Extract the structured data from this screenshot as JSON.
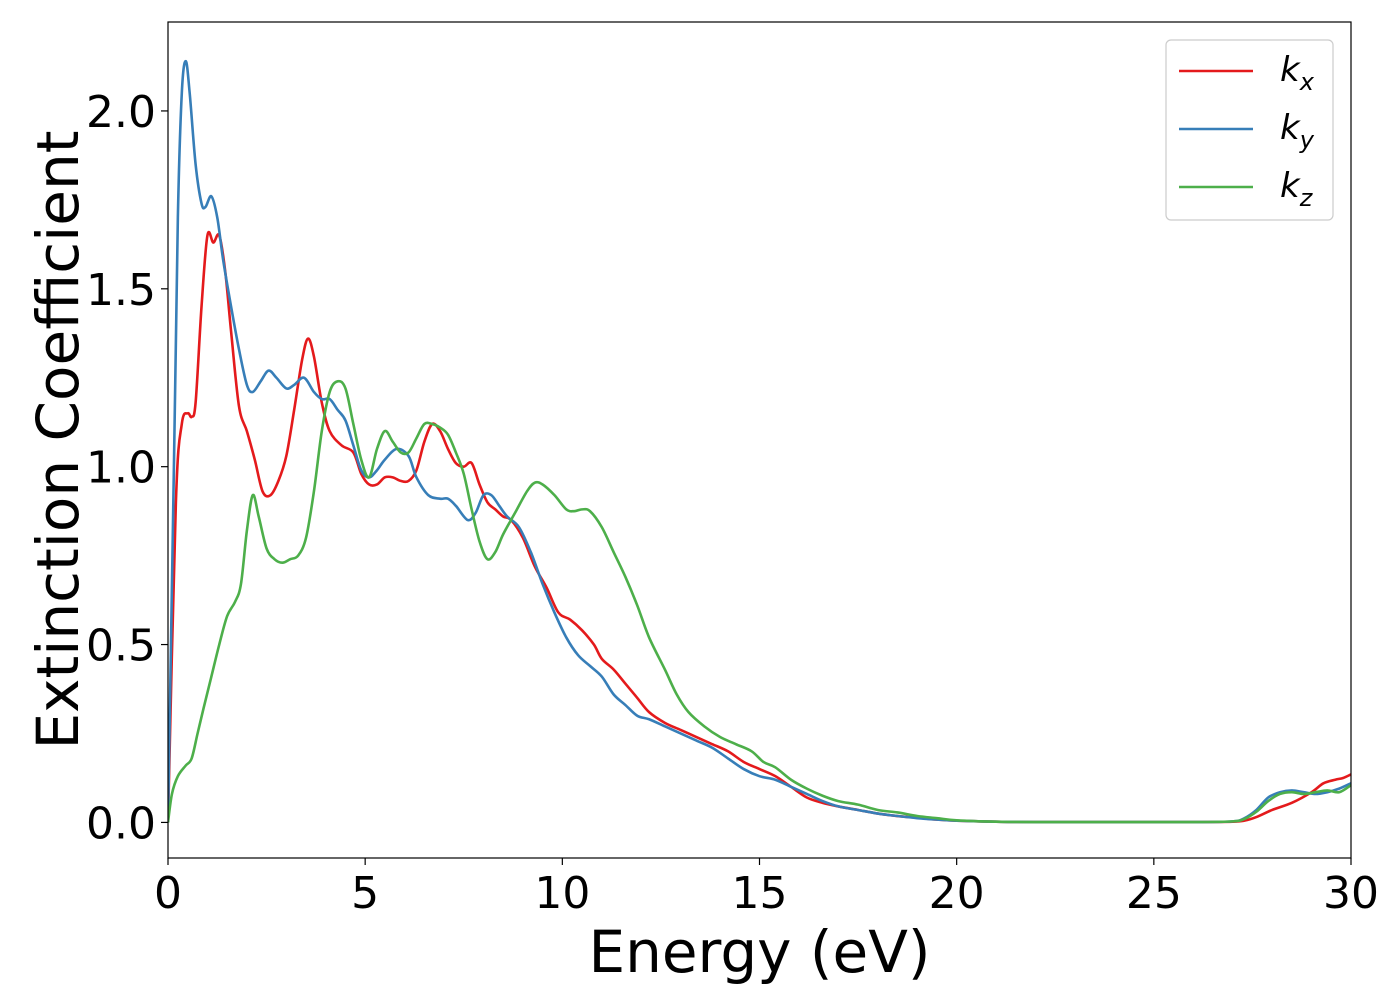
{
  "chart_data": {
    "type": "line",
    "title": "",
    "xlabel": "Energy (eV)",
    "ylabel": "Extinction Coefficient",
    "xlim": [
      0,
      30
    ],
    "ylim": [
      -0.1,
      2.25
    ],
    "xticks": [
      0,
      5,
      10,
      15,
      20,
      25,
      30
    ],
    "xtick_labels": [
      "0",
      "5",
      "10",
      "15",
      "20",
      "25",
      "30"
    ],
    "yticks": [
      0.0,
      0.5,
      1.0,
      1.5,
      2.0
    ],
    "ytick_labels": [
      "0.0",
      "0.5",
      "1.0",
      "1.5",
      "2.0"
    ],
    "grid": false,
    "legend_position": "top-right",
    "series": [
      {
        "name": "k",
        "subscript": "x",
        "color": "#e41a1c",
        "points": [
          [
            0,
            0
          ],
          [
            0.2,
            0.9
          ],
          [
            0.35,
            1.12
          ],
          [
            0.5,
            1.15
          ],
          [
            0.6,
            1.14
          ],
          [
            0.7,
            1.18
          ],
          [
            0.85,
            1.45
          ],
          [
            1.0,
            1.65
          ],
          [
            1.15,
            1.63
          ],
          [
            1.3,
            1.65
          ],
          [
            1.45,
            1.55
          ],
          [
            1.6,
            1.38
          ],
          [
            1.8,
            1.17
          ],
          [
            2.0,
            1.1
          ],
          [
            2.2,
            1.02
          ],
          [
            2.4,
            0.93
          ],
          [
            2.6,
            0.92
          ],
          [
            2.8,
            0.96
          ],
          [
            3.0,
            1.03
          ],
          [
            3.2,
            1.16
          ],
          [
            3.4,
            1.3
          ],
          [
            3.55,
            1.36
          ],
          [
            3.7,
            1.31
          ],
          [
            3.9,
            1.18
          ],
          [
            4.1,
            1.1
          ],
          [
            4.4,
            1.06
          ],
          [
            4.7,
            1.04
          ],
          [
            4.9,
            0.98
          ],
          [
            5.1,
            0.95
          ],
          [
            5.3,
            0.95
          ],
          [
            5.5,
            0.97
          ],
          [
            5.7,
            0.97
          ],
          [
            5.9,
            0.96
          ],
          [
            6.1,
            0.96
          ],
          [
            6.3,
            0.99
          ],
          [
            6.5,
            1.07
          ],
          [
            6.7,
            1.12
          ],
          [
            6.9,
            1.1
          ],
          [
            7.1,
            1.05
          ],
          [
            7.3,
            1.01
          ],
          [
            7.5,
            1.0
          ],
          [
            7.7,
            1.01
          ],
          [
            7.9,
            0.95
          ],
          [
            8.1,
            0.9
          ],
          [
            8.3,
            0.88
          ],
          [
            8.5,
            0.86
          ],
          [
            8.7,
            0.85
          ],
          [
            9.0,
            0.8
          ],
          [
            9.3,
            0.72
          ],
          [
            9.6,
            0.66
          ],
          [
            9.9,
            0.59
          ],
          [
            10.2,
            0.57
          ],
          [
            10.5,
            0.54
          ],
          [
            10.8,
            0.5
          ],
          [
            11.0,
            0.46
          ],
          [
            11.3,
            0.43
          ],
          [
            11.6,
            0.39
          ],
          [
            11.9,
            0.35
          ],
          [
            12.2,
            0.31
          ],
          [
            12.6,
            0.28
          ],
          [
            13.0,
            0.26
          ],
          [
            13.4,
            0.24
          ],
          [
            13.8,
            0.22
          ],
          [
            14.2,
            0.2
          ],
          [
            14.6,
            0.17
          ],
          [
            15.0,
            0.15
          ],
          [
            15.4,
            0.13
          ],
          [
            15.8,
            0.1
          ],
          [
            16.2,
            0.07
          ],
          [
            16.6,
            0.055
          ],
          [
            17.0,
            0.045
          ],
          [
            17.5,
            0.035
          ],
          [
            18.0,
            0.025
          ],
          [
            18.5,
            0.018
          ],
          [
            19.0,
            0.013
          ],
          [
            19.5,
            0.008
          ],
          [
            20.0,
            0.005
          ],
          [
            21,
            0.002
          ],
          [
            22,
            0.001
          ],
          [
            24,
            0.001
          ],
          [
            26,
            0.001
          ],
          [
            27.0,
            0.002
          ],
          [
            27.3,
            0.005
          ],
          [
            27.6,
            0.015
          ],
          [
            28.0,
            0.035
          ],
          [
            28.5,
            0.055
          ],
          [
            29.0,
            0.085
          ],
          [
            29.3,
            0.11
          ],
          [
            29.6,
            0.12
          ],
          [
            29.8,
            0.125
          ],
          [
            30.0,
            0.135
          ]
        ]
      },
      {
        "name": "k",
        "subscript": "y",
        "color": "#377eb8",
        "points": [
          [
            0,
            0
          ],
          [
            0.15,
            1.0
          ],
          [
            0.25,
            1.7
          ],
          [
            0.35,
            2.05
          ],
          [
            0.45,
            2.14
          ],
          [
            0.55,
            2.05
          ],
          [
            0.7,
            1.85
          ],
          [
            0.85,
            1.74
          ],
          [
            0.95,
            1.73
          ],
          [
            1.1,
            1.76
          ],
          [
            1.25,
            1.7
          ],
          [
            1.4,
            1.58
          ],
          [
            1.6,
            1.45
          ],
          [
            1.8,
            1.33
          ],
          [
            2.0,
            1.23
          ],
          [
            2.15,
            1.21
          ],
          [
            2.35,
            1.24
          ],
          [
            2.55,
            1.27
          ],
          [
            2.75,
            1.25
          ],
          [
            3.0,
            1.22
          ],
          [
            3.2,
            1.23
          ],
          [
            3.45,
            1.25
          ],
          [
            3.7,
            1.21
          ],
          [
            3.9,
            1.19
          ],
          [
            4.1,
            1.19
          ],
          [
            4.3,
            1.16
          ],
          [
            4.5,
            1.13
          ],
          [
            4.7,
            1.06
          ],
          [
            4.9,
            0.99
          ],
          [
            5.1,
            0.97
          ],
          [
            5.3,
            0.99
          ],
          [
            5.5,
            1.02
          ],
          [
            5.8,
            1.05
          ],
          [
            6.1,
            1.03
          ],
          [
            6.3,
            0.97
          ],
          [
            6.6,
            0.92
          ],
          [
            6.9,
            0.91
          ],
          [
            7.1,
            0.91
          ],
          [
            7.3,
            0.89
          ],
          [
            7.6,
            0.85
          ],
          [
            7.8,
            0.87
          ],
          [
            8.0,
            0.92
          ],
          [
            8.2,
            0.92
          ],
          [
            8.4,
            0.89
          ],
          [
            8.6,
            0.86
          ],
          [
            8.9,
            0.83
          ],
          [
            9.2,
            0.76
          ],
          [
            9.5,
            0.67
          ],
          [
            9.8,
            0.59
          ],
          [
            10.1,
            0.52
          ],
          [
            10.4,
            0.47
          ],
          [
            10.7,
            0.44
          ],
          [
            11.0,
            0.41
          ],
          [
            11.3,
            0.36
          ],
          [
            11.6,
            0.33
          ],
          [
            11.9,
            0.3
          ],
          [
            12.2,
            0.29
          ],
          [
            12.6,
            0.27
          ],
          [
            13.0,
            0.25
          ],
          [
            13.4,
            0.23
          ],
          [
            13.8,
            0.21
          ],
          [
            14.2,
            0.18
          ],
          [
            14.6,
            0.15
          ],
          [
            15.0,
            0.13
          ],
          [
            15.4,
            0.12
          ],
          [
            15.8,
            0.1
          ],
          [
            16.2,
            0.08
          ],
          [
            16.6,
            0.06
          ],
          [
            17.0,
            0.045
          ],
          [
            17.5,
            0.035
          ],
          [
            18.0,
            0.025
          ],
          [
            18.5,
            0.018
          ],
          [
            19.0,
            0.012
          ],
          [
            19.5,
            0.008
          ],
          [
            20.0,
            0.005
          ],
          [
            21,
            0.002
          ],
          [
            22,
            0.001
          ],
          [
            24,
            0.001
          ],
          [
            26,
            0.001
          ],
          [
            27.0,
            0.003
          ],
          [
            27.3,
            0.012
          ],
          [
            27.6,
            0.035
          ],
          [
            27.9,
            0.07
          ],
          [
            28.2,
            0.085
          ],
          [
            28.5,
            0.09
          ],
          [
            28.8,
            0.085
          ],
          [
            29.1,
            0.08
          ],
          [
            29.4,
            0.085
          ],
          [
            29.7,
            0.095
          ],
          [
            30.0,
            0.11
          ]
        ]
      },
      {
        "name": "k",
        "subscript": "z",
        "color": "#4daf4a",
        "points": [
          [
            0,
            0
          ],
          [
            0.1,
            0.08
          ],
          [
            0.25,
            0.13
          ],
          [
            0.45,
            0.16
          ],
          [
            0.6,
            0.18
          ],
          [
            0.75,
            0.25
          ],
          [
            0.9,
            0.32
          ],
          [
            1.1,
            0.41
          ],
          [
            1.3,
            0.5
          ],
          [
            1.5,
            0.58
          ],
          [
            1.7,
            0.62
          ],
          [
            1.85,
            0.67
          ],
          [
            2.0,
            0.82
          ],
          [
            2.15,
            0.92
          ],
          [
            2.3,
            0.86
          ],
          [
            2.5,
            0.77
          ],
          [
            2.7,
            0.74
          ],
          [
            2.9,
            0.73
          ],
          [
            3.1,
            0.74
          ],
          [
            3.3,
            0.75
          ],
          [
            3.5,
            0.8
          ],
          [
            3.7,
            0.93
          ],
          [
            3.9,
            1.1
          ],
          [
            4.1,
            1.21
          ],
          [
            4.3,
            1.24
          ],
          [
            4.5,
            1.22
          ],
          [
            4.7,
            1.12
          ],
          [
            4.9,
            1.02
          ],
          [
            5.1,
            0.97
          ],
          [
            5.3,
            1.05
          ],
          [
            5.5,
            1.1
          ],
          [
            5.7,
            1.07
          ],
          [
            5.9,
            1.04
          ],
          [
            6.1,
            1.04
          ],
          [
            6.3,
            1.08
          ],
          [
            6.5,
            1.12
          ],
          [
            6.7,
            1.12
          ],
          [
            6.9,
            1.11
          ],
          [
            7.1,
            1.09
          ],
          [
            7.3,
            1.04
          ],
          [
            7.5,
            0.98
          ],
          [
            7.7,
            0.88
          ],
          [
            7.9,
            0.79
          ],
          [
            8.1,
            0.74
          ],
          [
            8.3,
            0.76
          ],
          [
            8.5,
            0.81
          ],
          [
            8.8,
            0.87
          ],
          [
            9.1,
            0.93
          ],
          [
            9.3,
            0.955
          ],
          [
            9.5,
            0.95
          ],
          [
            9.8,
            0.92
          ],
          [
            10.1,
            0.88
          ],
          [
            10.3,
            0.875
          ],
          [
            10.5,
            0.88
          ],
          [
            10.7,
            0.875
          ],
          [
            11.0,
            0.83
          ],
          [
            11.3,
            0.76
          ],
          [
            11.6,
            0.69
          ],
          [
            11.9,
            0.61
          ],
          [
            12.2,
            0.52
          ],
          [
            12.6,
            0.43
          ],
          [
            12.9,
            0.36
          ],
          [
            13.2,
            0.31
          ],
          [
            13.6,
            0.27
          ],
          [
            14.0,
            0.24
          ],
          [
            14.4,
            0.22
          ],
          [
            14.8,
            0.2
          ],
          [
            15.1,
            0.17
          ],
          [
            15.4,
            0.155
          ],
          [
            15.8,
            0.12
          ],
          [
            16.2,
            0.095
          ],
          [
            16.6,
            0.075
          ],
          [
            17.0,
            0.06
          ],
          [
            17.5,
            0.05
          ],
          [
            18.0,
            0.035
          ],
          [
            18.5,
            0.028
          ],
          [
            19.0,
            0.018
          ],
          [
            19.5,
            0.012
          ],
          [
            20.0,
            0.006
          ],
          [
            21,
            0.002
          ],
          [
            22,
            0.001
          ],
          [
            24,
            0.001
          ],
          [
            26,
            0.001
          ],
          [
            27.0,
            0.003
          ],
          [
            27.3,
            0.01
          ],
          [
            27.6,
            0.03
          ],
          [
            27.9,
            0.06
          ],
          [
            28.2,
            0.08
          ],
          [
            28.5,
            0.085
          ],
          [
            28.8,
            0.08
          ],
          [
            29.1,
            0.085
          ],
          [
            29.4,
            0.09
          ],
          [
            29.7,
            0.085
          ],
          [
            30.0,
            0.105
          ]
        ]
      }
    ]
  }
}
